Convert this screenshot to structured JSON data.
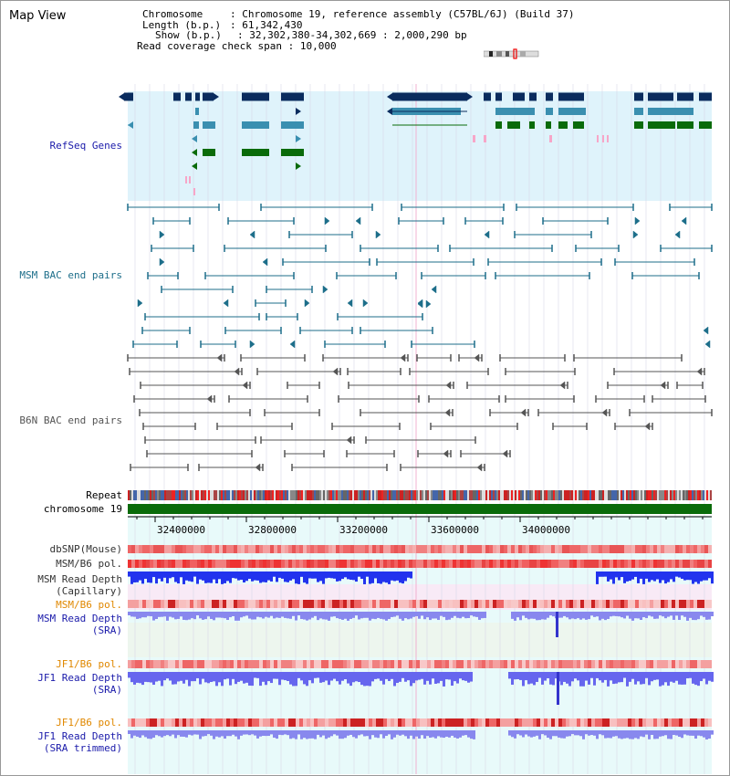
{
  "title": "Map View",
  "info": {
    "chromosome_key": "Chromosome",
    "chromosome_val": "Chromosome 19, reference assembly (C57BL/6J) (Build 37)",
    "length_key": "Length (b.p.)",
    "length_val": "61,342,430",
    "show_key": "Show (b.p.)",
    "show_val": "32,302,380-34,302,669 : 2,000,290 bp",
    "coverage_key": "Read coverage check span",
    "coverage_val": "10,000"
  },
  "tracks": {
    "refseq": "RefSeq Genes",
    "msm_bac": "MSM BAC end pairs",
    "b6n_bac": "B6N BAC end pairs",
    "repeat": "Repeat",
    "chrom": "chromosome 19",
    "dbsnp": "dbSNP(Mouse)",
    "msm_b6_pol": "MSM/B6 pol.",
    "msm_read_cap_1": "MSM Read Depth",
    "msm_read_cap_2": "(Capillary)",
    "msm_b6_pol2": "MSM/B6 pol.",
    "msm_read_sra_1": "MSM Read Depth",
    "msm_read_sra_2": "(SRA)",
    "jf1_b6_pol": "JF1/B6 pol.",
    "jf1_read_sra_1": "JF1 Read Depth",
    "jf1_read_sra_2": "(SRA)",
    "jf1_b6_pol2": "JF1/B6 pol.",
    "jf1_read_trim_1": "JF1 Read Depth",
    "jf1_read_trim_2": "(SRA trimmed)"
  },
  "axis": {
    "ticks": [
      "32400000",
      "32800000",
      "33200000",
      "33600000",
      "34000000"
    ]
  },
  "colors": {
    "refseq_bg": "#dff3fb",
    "navy": "#0a2c5e",
    "teal": "#3a8fb0",
    "green": "#0a6b0a",
    "bac": "#1d6e8a",
    "b6n": "#555555",
    "chrom": "#0a6b0a",
    "read_bg": "#e8fafa",
    "label_blue": "#1a1aaa",
    "label_orange": "#e08800"
  }
}
